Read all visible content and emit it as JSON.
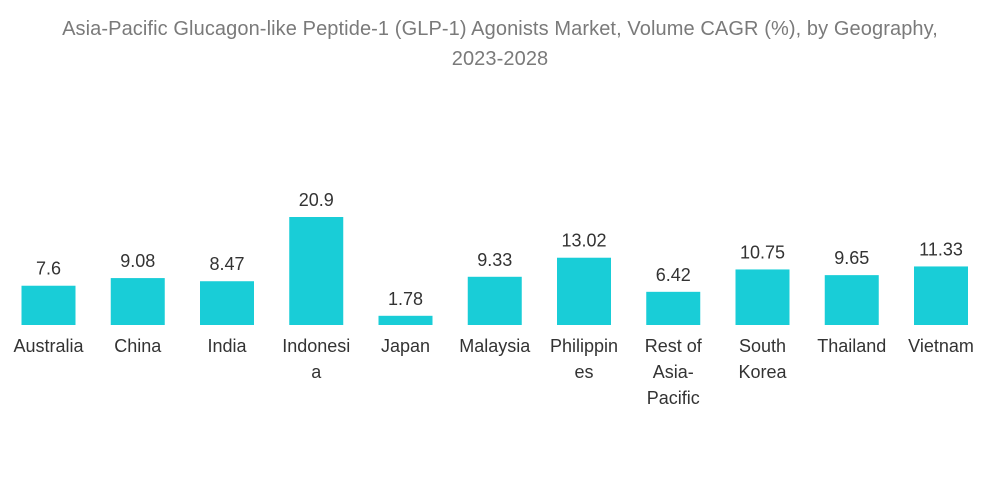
{
  "chart_data": {
    "type": "bar",
    "title": "Asia-Pacific Glucagon-like Peptide-1 (GLP-1) Agonists Market, Volume CAGR (%), by Geography, 2023-2028",
    "categories": [
      [
        "Australia"
      ],
      [
        "China"
      ],
      [
        "India"
      ],
      [
        "Indonesi",
        "a"
      ],
      [
        "Japan"
      ],
      [
        "Malaysia"
      ],
      [
        "Philippin",
        "es"
      ],
      [
        "Rest of",
        "Asia-",
        "Pacific"
      ],
      [
        "South",
        "Korea"
      ],
      [
        "Thailand"
      ],
      [
        "Vietnam"
      ]
    ],
    "values": [
      7.6,
      9.08,
      8.47,
      20.9,
      1.78,
      9.33,
      13.02,
      6.42,
      10.75,
      9.65,
      11.33
    ],
    "value_labels": [
      "7.6",
      "9.08",
      "8.47",
      "20.9",
      "1.78",
      "9.33",
      "13.02",
      "6.42",
      "10.75",
      "9.65",
      "11.33"
    ],
    "bar_color": "#19cdd7",
    "xlabel": "",
    "ylabel": "",
    "ylim": [
      0,
      20.9
    ],
    "grid": false
  }
}
